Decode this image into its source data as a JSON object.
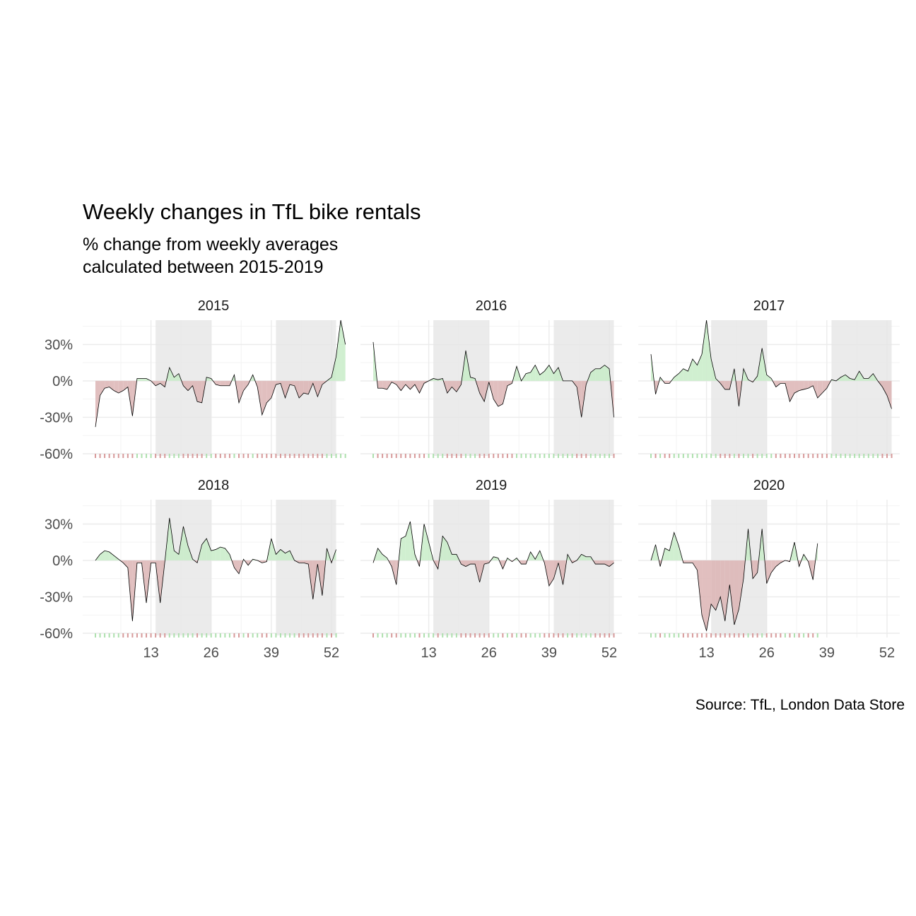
{
  "title": "Weekly changes in TfL bike rentals",
  "subtitle_line1": "% change from weekly averages",
  "subtitle_line2": "calculated between 2015-2019",
  "caption": "Source: TfL, London Data Store",
  "colors": {
    "positive": "#c8ecc8",
    "negative": "#dcb4b4",
    "quarter_shade": "#e6e6e6",
    "grid": "#ebebeb",
    "line": "#000000"
  },
  "chart_data": {
    "type": "area",
    "facet_by": "year",
    "x_unit": "week",
    "y_unit": "percent change",
    "xlim": [
      1,
      52
    ],
    "ylim": [
      -60,
      50
    ],
    "x_ticks": [
      13,
      26,
      39,
      52
    ],
    "x_tick_labels": [
      "13",
      "26",
      "39",
      "52"
    ],
    "y_ticks": [
      30,
      0,
      -30,
      -60
    ],
    "y_tick_labels": [
      "30%",
      "0%",
      "-30%",
      "-60%"
    ],
    "shaded_week_ranges": [
      [
        14,
        26
      ],
      [
        40,
        53
      ]
    ],
    "grid": true,
    "legend": "none",
    "series": [
      {
        "name": "2015",
        "values": [
          -38,
          -12,
          -6,
          -5,
          -8,
          -10,
          -8,
          -5,
          -29,
          2,
          2,
          2,
          0,
          -4,
          -2,
          -5,
          11,
          3,
          6,
          -4,
          -8,
          -4,
          -17,
          -18,
          3,
          2,
          -3,
          -4,
          -4,
          -4,
          5,
          -18,
          -8,
          -3,
          5,
          -5,
          -28,
          -18,
          -14,
          -3,
          -2,
          -14,
          -3,
          -4,
          -14,
          -10,
          -11,
          -2,
          -13,
          -3,
          0,
          3,
          20,
          50,
          30
        ]
      },
      {
        "name": "2016",
        "values": [
          32,
          -6,
          -6,
          -7,
          -1,
          -3,
          -8,
          -3,
          -7,
          -3,
          -10,
          -2,
          0,
          2,
          1,
          2,
          -10,
          -5,
          -9,
          -3,
          25,
          3,
          2,
          -10,
          -17,
          -1,
          -15,
          -21,
          -19,
          -4,
          -2,
          12,
          0,
          6,
          7,
          13,
          5,
          8,
          13,
          6,
          11,
          0,
          0,
          0,
          -5,
          -30,
          -3,
          7,
          10,
          10,
          13,
          10,
          -30
        ]
      },
      {
        "name": "2017",
        "values": [
          22,
          -11,
          3,
          -2,
          -2,
          3,
          6,
          10,
          8,
          18,
          13,
          22,
          50,
          18,
          2,
          -2,
          -7,
          -7,
          10,
          -21,
          10,
          1,
          -1,
          4,
          27,
          5,
          2,
          -5,
          -2,
          -2,
          -17,
          -10,
          -8,
          -7,
          -6,
          -4,
          -14,
          -10,
          -6,
          1,
          0,
          3,
          5,
          2,
          1,
          8,
          2,
          2,
          6,
          0,
          -5,
          -12,
          -23
        ]
      },
      {
        "name": "2018",
        "values": [
          0,
          5,
          8,
          7,
          4,
          1,
          -2,
          -6,
          -50,
          -2,
          -2,
          -35,
          -2,
          -2,
          -35,
          -1,
          35,
          8,
          5,
          28,
          12,
          1,
          -2,
          13,
          18,
          8,
          9,
          11,
          10,
          5,
          -6,
          -11,
          1,
          -4,
          1,
          0,
          -2,
          -1,
          18,
          5,
          9,
          6,
          8,
          0,
          -2,
          -2,
          -3,
          -32,
          -3,
          -29,
          10,
          -2,
          9
        ]
      },
      {
        "name": "2019",
        "values": [
          -2,
          10,
          5,
          2,
          -5,
          -20,
          18,
          20,
          32,
          5,
          -5,
          30,
          15,
          0,
          -7,
          20,
          15,
          5,
          5,
          -3,
          -5,
          -3,
          -3,
          -18,
          -3,
          -2,
          3,
          2,
          -7,
          2,
          -1,
          2,
          -3,
          -3,
          7,
          1,
          8,
          -2,
          -21,
          -15,
          -2,
          -20,
          5,
          -2,
          0,
          5,
          3,
          3,
          -3,
          -3,
          -3,
          -5,
          -2
        ]
      },
      {
        "name": "2020",
        "values": [
          0,
          13,
          -5,
          10,
          8,
          23,
          12,
          -2,
          -2,
          -2,
          -8,
          -45,
          -58,
          -36,
          -41,
          -30,
          -50,
          -20,
          -53,
          -40,
          -15,
          26,
          -15,
          -10,
          26,
          -19,
          -10,
          -5,
          -2,
          0,
          -1,
          15,
          -5,
          5,
          -1,
          -16,
          14
        ]
      }
    ]
  }
}
